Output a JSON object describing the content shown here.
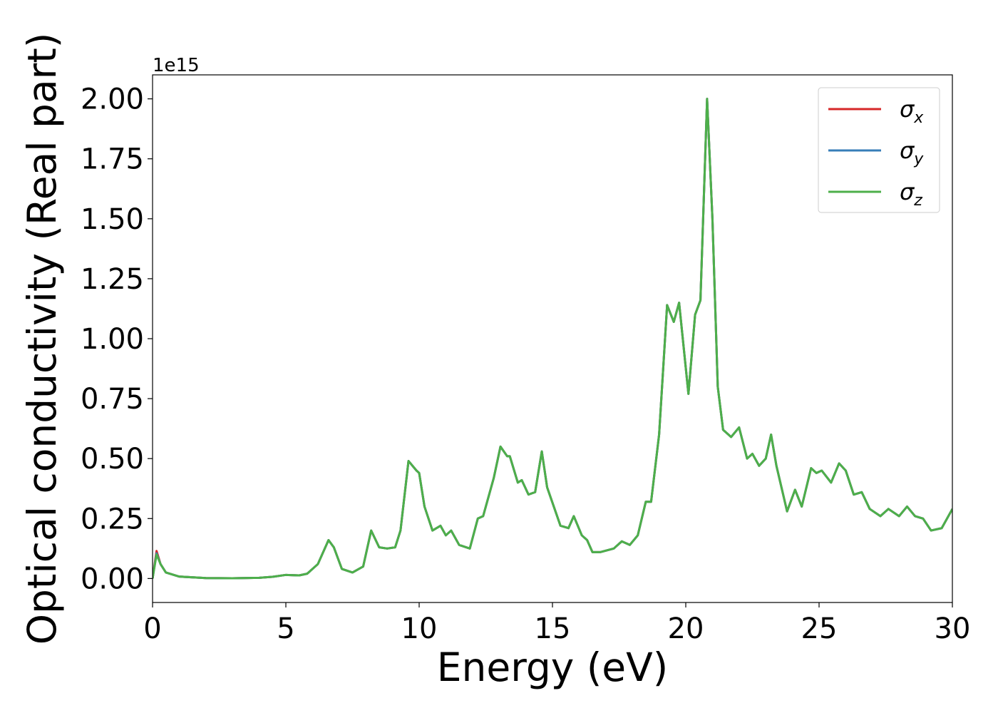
{
  "chart_data": {
    "type": "line",
    "xlabel": "Energy (eV)",
    "ylabel": "Optical conductivity (Real part)",
    "y_offset_label": "1e15",
    "xlim": [
      0,
      30
    ],
    "ylim": [
      -0.1,
      2.1
    ],
    "xticks": [
      0,
      5,
      10,
      15,
      20,
      25,
      30
    ],
    "yticks": [
      {
        "value": 0,
        "label": "0.00"
      },
      0.25,
      {
        "value": 0.5,
        "label": "0.50"
      },
      0.75,
      {
        "value": 1,
        "label": "1.00"
      },
      1.25,
      {
        "value": 1.5,
        "label": "1.50"
      },
      1.75,
      {
        "value": 2,
        "label": "2.00"
      }
    ],
    "legend": "upper right",
    "x": [
      0,
      0.15,
      0.3,
      0.5,
      1,
      2,
      3,
      4,
      4.5,
      5,
      5.5,
      5.8,
      6.2,
      6.6,
      6.8,
      7.1,
      7.5,
      7.9,
      8.2,
      8.5,
      8.8,
      9.1,
      9.3,
      9.6,
      9.9,
      10.0,
      10.2,
      10.5,
      10.8,
      11.0,
      11.2,
      11.5,
      11.9,
      12.2,
      12.4,
      12.8,
      13.05,
      13.3,
      13.4,
      13.7,
      13.85,
      14.1,
      14.35,
      14.6,
      14.8,
      15.3,
      15.6,
      15.8,
      16.1,
      16.3,
      16.5,
      16.8,
      17.3,
      17.6,
      17.9,
      18.2,
      18.5,
      18.7,
      19.0,
      19.3,
      19.55,
      19.75,
      20.1,
      20.35,
      20.55,
      20.8,
      21.0,
      21.2,
      21.4,
      21.7,
      22.0,
      22.3,
      22.5,
      22.75,
      23.0,
      23.2,
      23.4,
      23.8,
      24.1,
      24.35,
      24.7,
      24.9,
      25.1,
      25.45,
      25.75,
      26.0,
      26.3,
      26.6,
      26.9,
      27.3,
      27.6,
      28.0,
      28.3,
      28.6,
      28.9,
      29.2,
      29.6,
      30.0
    ],
    "series": [
      {
        "name": "σx",
        "color": "#d62728",
        "values": [
          0,
          0.115,
          0.06,
          0.025,
          0.008,
          0.002,
          0.001,
          0.003,
          0.007,
          0.015,
          0.013,
          0.02,
          0.06,
          0.16,
          0.13,
          0.04,
          0.025,
          0.05,
          0.2,
          0.13,
          0.125,
          0.13,
          0.2,
          0.49,
          0.45,
          0.44,
          0.3,
          0.2,
          0.22,
          0.18,
          0.2,
          0.14,
          0.125,
          0.25,
          0.26,
          0.42,
          0.55,
          0.51,
          0.51,
          0.4,
          0.41,
          0.35,
          0.36,
          0.53,
          0.38,
          0.22,
          0.21,
          0.26,
          0.18,
          0.16,
          0.11,
          0.11,
          0.125,
          0.155,
          0.14,
          0.18,
          0.32,
          0.32,
          0.6,
          1.14,
          1.07,
          1.15,
          0.77,
          1.1,
          1.16,
          2.0,
          1.5,
          0.8,
          0.62,
          0.59,
          0.63,
          0.5,
          0.52,
          0.47,
          0.5,
          0.6,
          0.47,
          0.28,
          0.37,
          0.3,
          0.46,
          0.44,
          0.45,
          0.4,
          0.48,
          0.45,
          0.35,
          0.36,
          0.29,
          0.26,
          0.29,
          0.26,
          0.3,
          0.26,
          0.25,
          0.2,
          0.21,
          0.29
        ]
      },
      {
        "name": "σy",
        "color": "#377eb8",
        "values": [
          0,
          0.105,
          0.06,
          0.025,
          0.008,
          0.002,
          0.001,
          0.003,
          0.007,
          0.015,
          0.013,
          0.02,
          0.06,
          0.16,
          0.13,
          0.04,
          0.025,
          0.05,
          0.2,
          0.13,
          0.125,
          0.13,
          0.2,
          0.49,
          0.45,
          0.44,
          0.3,
          0.2,
          0.22,
          0.18,
          0.2,
          0.14,
          0.125,
          0.25,
          0.26,
          0.42,
          0.55,
          0.51,
          0.51,
          0.4,
          0.41,
          0.35,
          0.36,
          0.53,
          0.38,
          0.22,
          0.21,
          0.26,
          0.18,
          0.16,
          0.11,
          0.11,
          0.125,
          0.155,
          0.14,
          0.18,
          0.32,
          0.32,
          0.6,
          1.14,
          1.07,
          1.15,
          0.77,
          1.1,
          1.16,
          2.0,
          1.5,
          0.8,
          0.62,
          0.59,
          0.63,
          0.5,
          0.52,
          0.47,
          0.5,
          0.6,
          0.47,
          0.28,
          0.37,
          0.3,
          0.46,
          0.44,
          0.45,
          0.4,
          0.48,
          0.45,
          0.35,
          0.36,
          0.29,
          0.26,
          0.29,
          0.26,
          0.3,
          0.26,
          0.25,
          0.2,
          0.21,
          0.29
        ]
      },
      {
        "name": "σz",
        "color": "#4daf4a",
        "values": [
          0,
          0.1,
          0.06,
          0.025,
          0.008,
          0.002,
          0.001,
          0.003,
          0.007,
          0.015,
          0.013,
          0.02,
          0.06,
          0.16,
          0.13,
          0.04,
          0.025,
          0.05,
          0.2,
          0.13,
          0.125,
          0.13,
          0.2,
          0.49,
          0.45,
          0.44,
          0.3,
          0.2,
          0.22,
          0.18,
          0.2,
          0.14,
          0.125,
          0.25,
          0.26,
          0.42,
          0.55,
          0.51,
          0.51,
          0.4,
          0.41,
          0.35,
          0.36,
          0.53,
          0.38,
          0.22,
          0.21,
          0.26,
          0.18,
          0.16,
          0.11,
          0.11,
          0.125,
          0.155,
          0.14,
          0.18,
          0.32,
          0.32,
          0.6,
          1.14,
          1.07,
          1.15,
          0.77,
          1.1,
          1.16,
          2.0,
          1.5,
          0.8,
          0.62,
          0.59,
          0.63,
          0.5,
          0.52,
          0.47,
          0.5,
          0.6,
          0.47,
          0.28,
          0.37,
          0.3,
          0.46,
          0.44,
          0.45,
          0.4,
          0.48,
          0.45,
          0.35,
          0.36,
          0.29,
          0.26,
          0.29,
          0.26,
          0.3,
          0.26,
          0.25,
          0.2,
          0.21,
          0.29
        ]
      }
    ]
  }
}
